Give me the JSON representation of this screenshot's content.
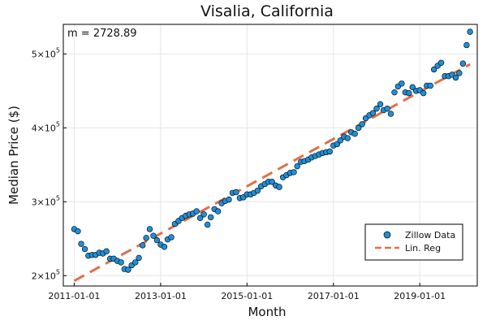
{
  "chart_data": {
    "type": "scatter",
    "title": "Visalia, California",
    "xlabel": "Month",
    "ylabel": "Median Price ($)",
    "annotation": "m = 2728.89",
    "x_ticks": [
      "2011-01-01",
      "2013-01-01",
      "2015-01-01",
      "2017-01-01",
      "2019-01-01"
    ],
    "y_ticks": [
      {
        "value": 200000,
        "mantissa": "2",
        "exp": "5"
      },
      {
        "value": 300000,
        "mantissa": "3",
        "exp": "5"
      },
      {
        "value": 400000,
        "mantissa": "4",
        "exp": "5"
      },
      {
        "value": 500000,
        "mantissa": "5",
        "exp": "5"
      }
    ],
    "xlim": [
      "2010-10-01",
      "2020-05-01"
    ],
    "ylim": [
      186000,
      540000
    ],
    "grid": true,
    "legend_position": "bottom-right",
    "series": [
      {
        "name": "Zillow Data",
        "kind": "scatter",
        "color": "#1f8fd6",
        "points": [
          [
            "2011-01-01",
            263000
          ],
          [
            "2011-02-01",
            260000
          ],
          [
            "2011-03-01",
            243000
          ],
          [
            "2011-04-01",
            236000
          ],
          [
            "2011-05-01",
            227000
          ],
          [
            "2011-06-01",
            228000
          ],
          [
            "2011-07-01",
            228000
          ],
          [
            "2011-08-01",
            231000
          ],
          [
            "2011-09-01",
            230000
          ],
          [
            "2011-10-01",
            233000
          ],
          [
            "2011-11-01",
            223000
          ],
          [
            "2011-12-01",
            223000
          ],
          [
            "2012-01-01",
            220000
          ],
          [
            "2012-02-01",
            218000
          ],
          [
            "2012-03-01",
            209000
          ],
          [
            "2012-04-01",
            208000
          ],
          [
            "2012-05-01",
            214000
          ],
          [
            "2012-06-01",
            218000
          ],
          [
            "2012-07-01",
            224000
          ],
          [
            "2012-08-01",
            241000
          ],
          [
            "2012-09-01",
            251000
          ],
          [
            "2012-10-01",
            263000
          ],
          [
            "2012-11-01",
            254000
          ],
          [
            "2012-12-01",
            248000
          ],
          [
            "2013-01-01",
            242000
          ],
          [
            "2013-02-01",
            239000
          ],
          [
            "2013-03-01",
            249000
          ],
          [
            "2013-04-01",
            252000
          ],
          [
            "2013-05-01",
            270000
          ],
          [
            "2013-06-01",
            274000
          ],
          [
            "2013-07-01",
            278000
          ],
          [
            "2013-08-01",
            281000
          ],
          [
            "2013-09-01",
            283000
          ],
          [
            "2013-10-01",
            284000
          ],
          [
            "2013-11-01",
            287000
          ],
          [
            "2013-12-01",
            278000
          ],
          [
            "2014-01-01",
            283000
          ],
          [
            "2014-02-01",
            269000
          ],
          [
            "2014-03-01",
            279000
          ],
          [
            "2014-04-01",
            290000
          ],
          [
            "2014-05-01",
            287000
          ],
          [
            "2014-06-01",
            298000
          ],
          [
            "2014-07-01",
            301000
          ],
          [
            "2014-08-01",
            303000
          ],
          [
            "2014-09-01",
            312000
          ],
          [
            "2014-10-01",
            313000
          ],
          [
            "2014-11-01",
            305000
          ],
          [
            "2014-12-01",
            306000
          ],
          [
            "2015-01-01",
            310000
          ],
          [
            "2015-02-01",
            310000
          ],
          [
            "2015-03-01",
            312000
          ],
          [
            "2015-04-01",
            315000
          ],
          [
            "2015-05-01",
            321000
          ],
          [
            "2015-06-01",
            324000
          ],
          [
            "2015-07-01",
            327000
          ],
          [
            "2015-08-01",
            327000
          ],
          [
            "2015-09-01",
            322000
          ],
          [
            "2015-10-01",
            320000
          ],
          [
            "2015-11-01",
            333000
          ],
          [
            "2015-12-01",
            336000
          ],
          [
            "2016-01-01",
            339000
          ],
          [
            "2016-02-01",
            340000
          ],
          [
            "2016-03-01",
            348000
          ],
          [
            "2016-04-01",
            354000
          ],
          [
            "2016-05-01",
            355000
          ],
          [
            "2016-06-01",
            357000
          ],
          [
            "2016-07-01",
            360000
          ],
          [
            "2016-08-01",
            362000
          ],
          [
            "2016-09-01",
            364000
          ],
          [
            "2016-10-01",
            366000
          ],
          [
            "2016-11-01",
            367000
          ],
          [
            "2016-12-01",
            368000
          ],
          [
            "2017-01-01",
            376000
          ],
          [
            "2017-02-01",
            378000
          ],
          [
            "2017-03-01",
            383000
          ],
          [
            "2017-04-01",
            388000
          ],
          [
            "2017-05-01",
            386000
          ],
          [
            "2017-06-01",
            394000
          ],
          [
            "2017-07-01",
            392000
          ],
          [
            "2017-08-01",
            400000
          ],
          [
            "2017-09-01",
            405000
          ],
          [
            "2017-10-01",
            413000
          ],
          [
            "2017-11-01",
            417000
          ],
          [
            "2017-12-01",
            420000
          ],
          [
            "2018-01-01",
            426000
          ],
          [
            "2018-02-01",
            432000
          ],
          [
            "2018-03-01",
            424000
          ],
          [
            "2018-04-01",
            426000
          ],
          [
            "2018-05-01",
            419000
          ],
          [
            "2018-06-01",
            448000
          ],
          [
            "2018-07-01",
            456000
          ],
          [
            "2018-08-01",
            460000
          ],
          [
            "2018-09-01",
            448000
          ],
          [
            "2018-10-01",
            447000
          ],
          [
            "2018-11-01",
            455000
          ],
          [
            "2018-12-01",
            450000
          ],
          [
            "2019-01-01",
            451000
          ],
          [
            "2019-02-01",
            447000
          ],
          [
            "2019-03-01",
            457000
          ],
          [
            "2019-04-01",
            457000
          ],
          [
            "2019-05-01",
            479000
          ],
          [
            "2019-06-01",
            484000
          ],
          [
            "2019-07-01",
            488000
          ],
          [
            "2019-08-01",
            470000
          ],
          [
            "2019-09-01",
            470000
          ],
          [
            "2019-10-01",
            472000
          ],
          [
            "2019-11-01",
            468000
          ],
          [
            "2019-12-01",
            474000
          ],
          [
            "2020-01-01",
            487000
          ],
          [
            "2020-02-01",
            512000
          ],
          [
            "2020-03-01",
            530000
          ]
        ]
      },
      {
        "name": "Lin. Reg",
        "kind": "line",
        "color": "#e26f46",
        "style": "dashed",
        "points": [
          [
            "2011-01-01",
            193000
          ],
          [
            "2020-03-01",
            486000
          ]
        ]
      }
    ]
  }
}
